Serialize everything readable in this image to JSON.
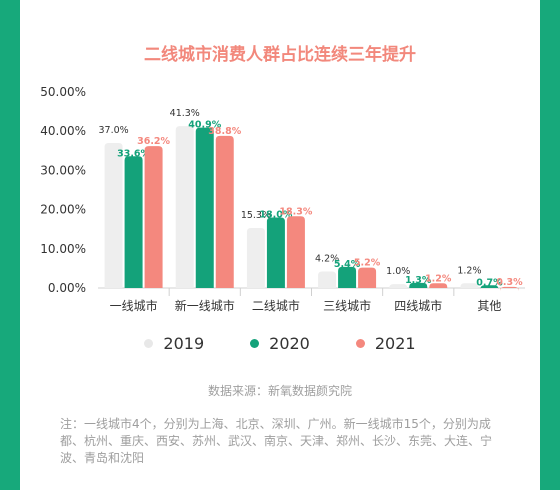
{
  "colors": {
    "accent": "#17a97b",
    "title": "#f2887c",
    "series_2019": "#eeeeee",
    "series_2020": "#14a27a",
    "series_2021": "#f4887e",
    "label_2019": "#333333",
    "label_2020": "#14a27a",
    "label_2021": "#f4887e",
    "axis_text": "#333333",
    "muted_text": "#9e9e9e"
  },
  "chart_data": {
    "type": "bar",
    "title": "二线城市消费人群占比连续三年提升",
    "categories": [
      "一线城市",
      "新一线城市",
      "二线城市",
      "三线城市",
      "四线城市",
      "其他"
    ],
    "series": [
      {
        "name": "2019",
        "values": [
          37.0,
          41.3,
          15.3,
          4.2,
          1.0,
          1.2
        ]
      },
      {
        "name": "2020",
        "values": [
          33.6,
          40.9,
          18.0,
          5.4,
          1.3,
          0.7
        ]
      },
      {
        "name": "2021",
        "values": [
          36.2,
          38.8,
          18.3,
          5.2,
          1.2,
          0.3
        ]
      }
    ],
    "yticks": [
      "0.00%",
      "10.00%",
      "20.00%",
      "30.00%",
      "40.00%",
      "50.00%"
    ],
    "ylim": [
      0,
      50
    ],
    "value_suffix": "%",
    "legend_position": "bottom",
    "grid": false
  },
  "source_text": "数据来源：新氧数据颜究院",
  "note_text": "注：一线城市4个，分别为上海、北京、深圳、广州。新一线城市15个，分别为成都、杭州、重庆、西安、苏州、武汉、南京、天津、郑州、长沙、东莞、大连、宁波、青岛和沈阳"
}
